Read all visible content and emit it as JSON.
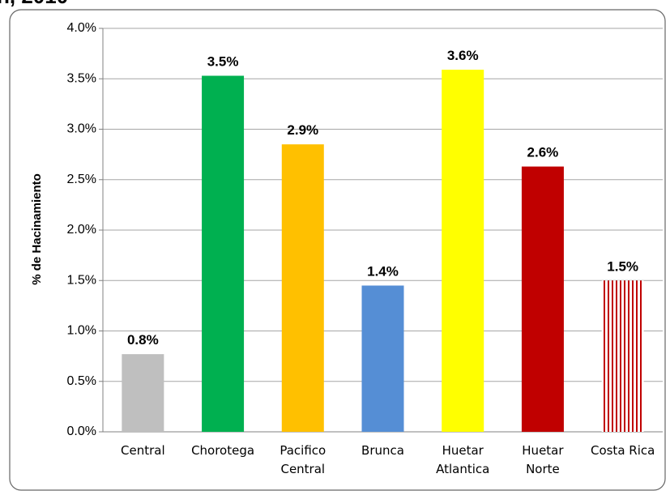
{
  "chart_data": {
    "type": "bar",
    "title": "n, 2010",
    "ylabel": "% de Hacinamiento",
    "categories": [
      "Central",
      "Chorotega",
      "Pacifico\nCentral",
      "Brunca",
      "Huetar\nAtlantica",
      "Huetar\nNorte",
      "Costa Rica"
    ],
    "values": [
      0.77,
      3.53,
      2.85,
      1.45,
      3.59,
      2.63,
      1.5
    ],
    "value_labels": [
      "0.8%",
      "3.5%",
      "2.9%",
      "1.4%",
      "3.6%",
      "2.6%",
      "1.5%"
    ],
    "colors": [
      "#bfbfbf",
      "#00b050",
      "#ffc000",
      "#558ed5",
      "#ffff00",
      "#c00000",
      "#c00000"
    ],
    "hatched": [
      false,
      false,
      false,
      false,
      false,
      false,
      true
    ],
    "ylim": [
      0,
      4
    ],
    "yticks": [
      {
        "value": 0,
        "label": "0.0%"
      },
      {
        "value": 0.5,
        "label": "0.5%"
      },
      {
        "value": 1,
        "label": "1.0%"
      },
      {
        "value": 1.5,
        "label": "1.5%"
      },
      {
        "value": 2,
        "label": "2.0%"
      },
      {
        "value": 2.5,
        "label": "2.5%"
      },
      {
        "value": 3,
        "label": "3.0%"
      },
      {
        "value": 3.5,
        "label": "3.5%"
      },
      {
        "value": 4,
        "label": "4.0%"
      }
    ],
    "grid": true
  }
}
